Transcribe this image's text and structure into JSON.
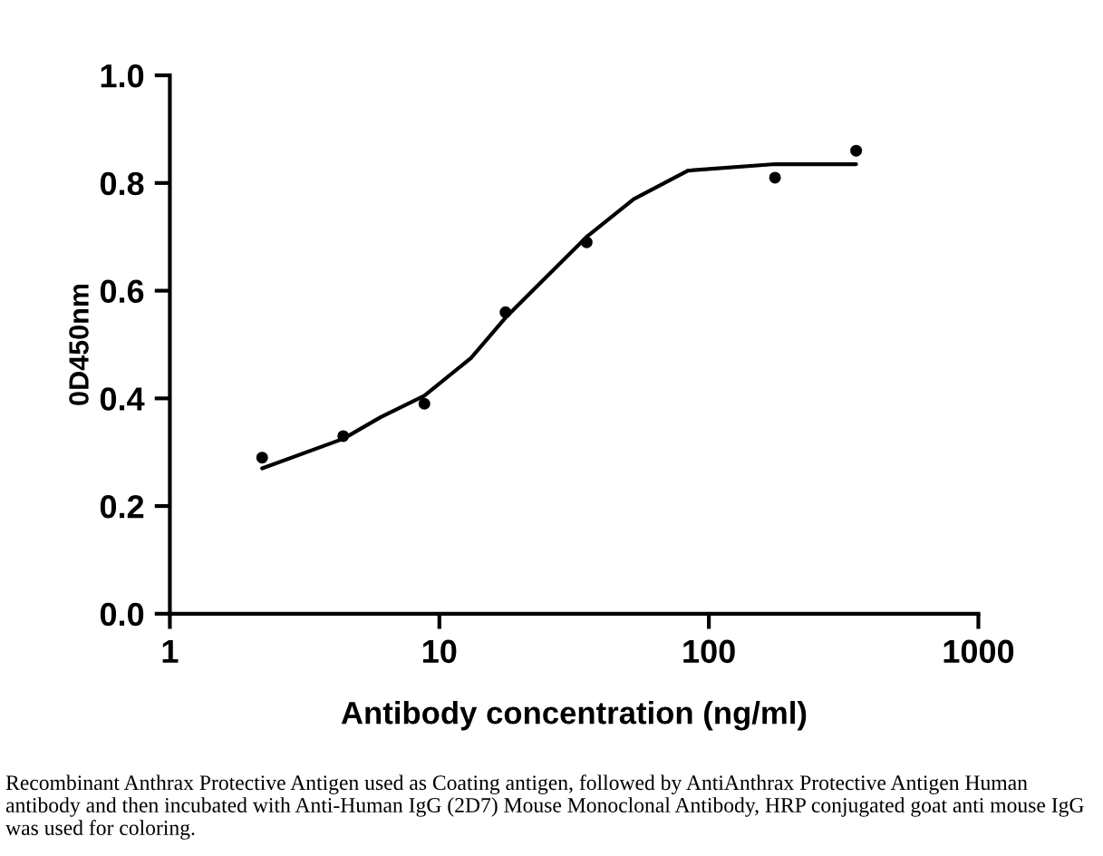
{
  "chart_data": {
    "type": "scatter",
    "xlabel": "Antibody concentration (ng/ml)",
    "ylabel": "0D450nm",
    "log": "x",
    "xlim": [
      1,
      1000
    ],
    "xticks": [
      1,
      10,
      100,
      1000
    ],
    "ylim": [
      0,
      1.0
    ],
    "yticks": [
      {
        "value": 0,
        "label": "0.0"
      },
      0.2,
      0.4,
      0.6,
      0.8,
      {
        "value": 1.0,
        "label": "1.0"
      }
    ],
    "grid": false,
    "series": [
      {
        "marker": "circle",
        "color": "#000000",
        "x": [
          2.2,
          4.4,
          8.8,
          17.6,
          35.2,
          176,
          352
        ],
        "values": [
          0.29,
          0.33,
          0.39,
          0.56,
          0.69,
          0.81,
          0.86
        ]
      },
      {
        "type": "line",
        "marker": "none",
        "line_style": "solid",
        "color": "#000000",
        "x": [
          2.2,
          4.4,
          6.05,
          8.8,
          13.1,
          17.6,
          24.3,
          35.2,
          52.6,
          83.7,
          176,
          352
        ],
        "values": [
          0.27,
          0.325,
          0.365,
          0.405,
          0.475,
          0.55,
          0.62,
          0.7,
          0.77,
          0.823,
          0.835,
          0.835
        ]
      }
    ],
    "annotations": [
      "Recombinant Anthrax Protective Antigen used as Coating antigen, followed by AntiAnthrax Protective Antigen Human antibody and then incubated with Anti-Human IgG (2D7) Mouse Monoclonal Antibody, HRP conjugated goat anti mouse IgG was used for coloring."
    ]
  }
}
